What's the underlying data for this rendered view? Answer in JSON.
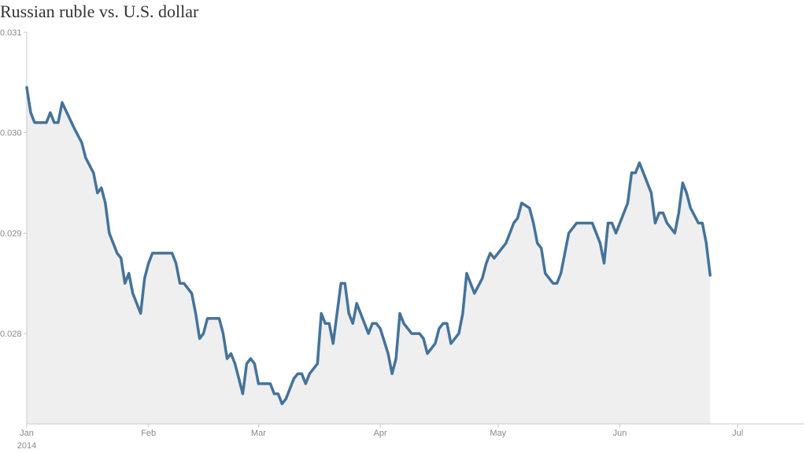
{
  "chart_data": {
    "type": "area",
    "title": "Russian ruble vs. U.S. dollar",
    "xlabel": "",
    "ylabel": "",
    "ylim": [
      0.0271,
      0.031
    ],
    "xlim": [
      "2014-01-01",
      "2014-07-18"
    ],
    "grid": false,
    "colors": {
      "line": "#44739a",
      "fill": "#efefef",
      "axis": "#c8c8c8",
      "label": "#8a8a8a"
    },
    "y_ticks": [
      {
        "value": 0.031,
        "label": "0.031"
      },
      {
        "value": 0.03,
        "label": "0.030"
      },
      {
        "value": 0.029,
        "label": "0.029"
      },
      {
        "value": 0.028,
        "label": "0.028"
      }
    ],
    "x_ticks": [
      {
        "date": "2014-01-01",
        "label": "Jan",
        "sublabel": "2014"
      },
      {
        "date": "2014-02-01",
        "label": "Feb"
      },
      {
        "date": "2014-03-01",
        "label": "Mar"
      },
      {
        "date": "2014-04-01",
        "label": "Apr"
      },
      {
        "date": "2014-05-01",
        "label": "May"
      },
      {
        "date": "2014-06-01",
        "label": "Jun"
      },
      {
        "date": "2014-07-01",
        "label": "Jul"
      }
    ],
    "series": [
      {
        "points": [
          [
            "2014-01-01",
            0.03045
          ],
          [
            "2014-01-02",
            0.0302
          ],
          [
            "2014-01-03",
            0.0301
          ],
          [
            "2014-01-06",
            0.0301
          ],
          [
            "2014-01-07",
            0.0302
          ],
          [
            "2014-01-08",
            0.0301
          ],
          [
            "2014-01-09",
            0.0301
          ],
          [
            "2014-01-10",
            0.0303
          ],
          [
            "2014-01-13",
            0.03005
          ],
          [
            "2014-01-15",
            0.0299
          ],
          [
            "2014-01-16",
            0.02975
          ],
          [
            "2014-01-18",
            0.0296
          ],
          [
            "2014-01-19",
            0.0294
          ],
          [
            "2014-01-20",
            0.02945
          ],
          [
            "2014-01-21",
            0.0293
          ],
          [
            "2014-01-22",
            0.029
          ],
          [
            "2014-01-24",
            0.0288
          ],
          [
            "2014-01-25",
            0.02875
          ],
          [
            "2014-01-26",
            0.0285
          ],
          [
            "2014-01-27",
            0.0286
          ],
          [
            "2014-01-28",
            0.0284
          ],
          [
            "2014-01-30",
            0.0282
          ],
          [
            "2014-01-31",
            0.02855
          ],
          [
            "2014-02-01",
            0.0287
          ],
          [
            "2014-02-02",
            0.0288
          ],
          [
            "2014-02-07",
            0.0288
          ],
          [
            "2014-02-08",
            0.0287
          ],
          [
            "2014-02-09",
            0.0285
          ],
          [
            "2014-02-10",
            0.0285
          ],
          [
            "2014-02-12",
            0.0284
          ],
          [
            "2014-02-13",
            0.0282
          ],
          [
            "2014-02-14",
            0.02795
          ],
          [
            "2014-02-15",
            0.028
          ],
          [
            "2014-02-16",
            0.02815
          ],
          [
            "2014-02-19",
            0.02815
          ],
          [
            "2014-02-20",
            0.028
          ],
          [
            "2014-02-21",
            0.02775
          ],
          [
            "2014-02-22",
            0.0278
          ],
          [
            "2014-02-23",
            0.0277
          ],
          [
            "2014-02-24",
            0.02755
          ],
          [
            "2014-02-25",
            0.0274
          ],
          [
            "2014-02-26",
            0.0277
          ],
          [
            "2014-02-27",
            0.02775
          ],
          [
            "2014-02-28",
            0.0277
          ],
          [
            "2014-03-01",
            0.0275
          ],
          [
            "2014-03-04",
            0.0275
          ],
          [
            "2014-03-05",
            0.0274
          ],
          [
            "2014-03-06",
            0.0274
          ],
          [
            "2014-03-07",
            0.0273
          ],
          [
            "2014-03-08",
            0.02735
          ],
          [
            "2014-03-09",
            0.02745
          ],
          [
            "2014-03-10",
            0.02755
          ],
          [
            "2014-03-11",
            0.0276
          ],
          [
            "2014-03-12",
            0.0276
          ],
          [
            "2014-03-13",
            0.0275
          ],
          [
            "2014-03-14",
            0.0276
          ],
          [
            "2014-03-16",
            0.0277
          ],
          [
            "2014-03-17",
            0.0282
          ],
          [
            "2014-03-18",
            0.0281
          ],
          [
            "2014-03-19",
            0.0281
          ],
          [
            "2014-03-20",
            0.0279
          ],
          [
            "2014-03-22",
            0.0285
          ],
          [
            "2014-03-23",
            0.0285
          ],
          [
            "2014-03-24",
            0.0282
          ],
          [
            "2014-03-25",
            0.0281
          ],
          [
            "2014-03-26",
            0.0283
          ],
          [
            "2014-03-29",
            0.028
          ],
          [
            "2014-03-30",
            0.0281
          ],
          [
            "2014-03-31",
            0.0281
          ],
          [
            "2014-04-01",
            0.02805
          ],
          [
            "2014-04-03",
            0.0278
          ],
          [
            "2014-04-04",
            0.0276
          ],
          [
            "2014-04-05",
            0.02775
          ],
          [
            "2014-04-06",
            0.0282
          ],
          [
            "2014-04-07",
            0.0281
          ],
          [
            "2014-04-09",
            0.028
          ],
          [
            "2014-04-11",
            0.028
          ],
          [
            "2014-04-12",
            0.02795
          ],
          [
            "2014-04-13",
            0.0278
          ],
          [
            "2014-04-15",
            0.0279
          ],
          [
            "2014-04-16",
            0.02805
          ],
          [
            "2014-04-17",
            0.0281
          ],
          [
            "2014-04-18",
            0.0281
          ],
          [
            "2014-04-19",
            0.0279
          ],
          [
            "2014-04-21",
            0.028
          ],
          [
            "2014-04-22",
            0.0282
          ],
          [
            "2014-04-23",
            0.0286
          ],
          [
            "2014-04-25",
            0.0284
          ],
          [
            "2014-04-27",
            0.02855
          ],
          [
            "2014-04-28",
            0.0287
          ],
          [
            "2014-04-29",
            0.0288
          ],
          [
            "2014-04-30",
            0.02875
          ],
          [
            "2014-05-03",
            0.0289
          ],
          [
            "2014-05-05",
            0.0291
          ],
          [
            "2014-05-06",
            0.02915
          ],
          [
            "2014-05-07",
            0.0293
          ],
          [
            "2014-05-09",
            0.02925
          ],
          [
            "2014-05-10",
            0.0291
          ],
          [
            "2014-05-11",
            0.0289
          ],
          [
            "2014-05-12",
            0.02885
          ],
          [
            "2014-05-13",
            0.0286
          ],
          [
            "2014-05-15",
            0.0285
          ],
          [
            "2014-05-16",
            0.0285
          ],
          [
            "2014-05-17",
            0.0286
          ],
          [
            "2014-05-18",
            0.0288
          ],
          [
            "2014-05-19",
            0.029
          ],
          [
            "2014-05-21",
            0.0291
          ],
          [
            "2014-05-25",
            0.0291
          ],
          [
            "2014-05-27",
            0.0289
          ],
          [
            "2014-05-28",
            0.0287
          ],
          [
            "2014-05-29",
            0.0291
          ],
          [
            "2014-05-30",
            0.0291
          ],
          [
            "2014-05-31",
            0.029
          ],
          [
            "2014-06-03",
            0.0293
          ],
          [
            "2014-06-04",
            0.0296
          ],
          [
            "2014-06-05",
            0.0296
          ],
          [
            "2014-06-06",
            0.0297
          ],
          [
            "2014-06-09",
            0.0294
          ],
          [
            "2014-06-10",
            0.0291
          ],
          [
            "2014-06-11",
            0.0292
          ],
          [
            "2014-06-12",
            0.0292
          ],
          [
            "2014-06-13",
            0.0291
          ],
          [
            "2014-06-15",
            0.029
          ],
          [
            "2014-06-16",
            0.0292
          ],
          [
            "2014-06-17",
            0.0295
          ],
          [
            "2014-06-18",
            0.0294
          ],
          [
            "2014-06-19",
            0.02925
          ],
          [
            "2014-06-21",
            0.0291
          ],
          [
            "2014-06-22",
            0.0291
          ],
          [
            "2014-06-23",
            0.0289
          ],
          [
            "2014-06-24",
            0.02858
          ]
        ]
      }
    ]
  }
}
